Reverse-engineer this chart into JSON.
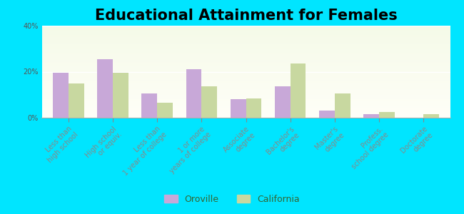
{
  "title": "Educational Attainment for Females",
  "categories": [
    "Less than\nhigh school",
    "High school\nor equiv.",
    "Less than\n1 year of college",
    "1 or more\nyears of college",
    "Associate\ndegree",
    "Bachelor's\ndegree",
    "Master's\ndegree",
    "Profess.\nschool degree",
    "Doctorate\ndegree"
  ],
  "oroville": [
    19.5,
    25.5,
    10.5,
    21.0,
    8.0,
    13.5,
    3.0,
    1.5,
    0.0
  ],
  "california": [
    15.0,
    19.5,
    6.5,
    13.5,
    8.5,
    23.5,
    10.5,
    2.5,
    1.5
  ],
  "oroville_color": "#c8a8d8",
  "california_color": "#c8d8a0",
  "outer_bg": "#00e5ff",
  "ylim": [
    0,
    40
  ],
  "yticks": [
    0,
    20,
    40
  ],
  "ytick_labels": [
    "0%",
    "20%",
    "40%"
  ],
  "legend_oroville": "Oroville",
  "legend_california": "California",
  "bar_width": 0.35,
  "title_fontsize": 15,
  "tick_fontsize": 7,
  "legend_fontsize": 9,
  "xlim_left": -0.6,
  "xlim_right": 8.6
}
